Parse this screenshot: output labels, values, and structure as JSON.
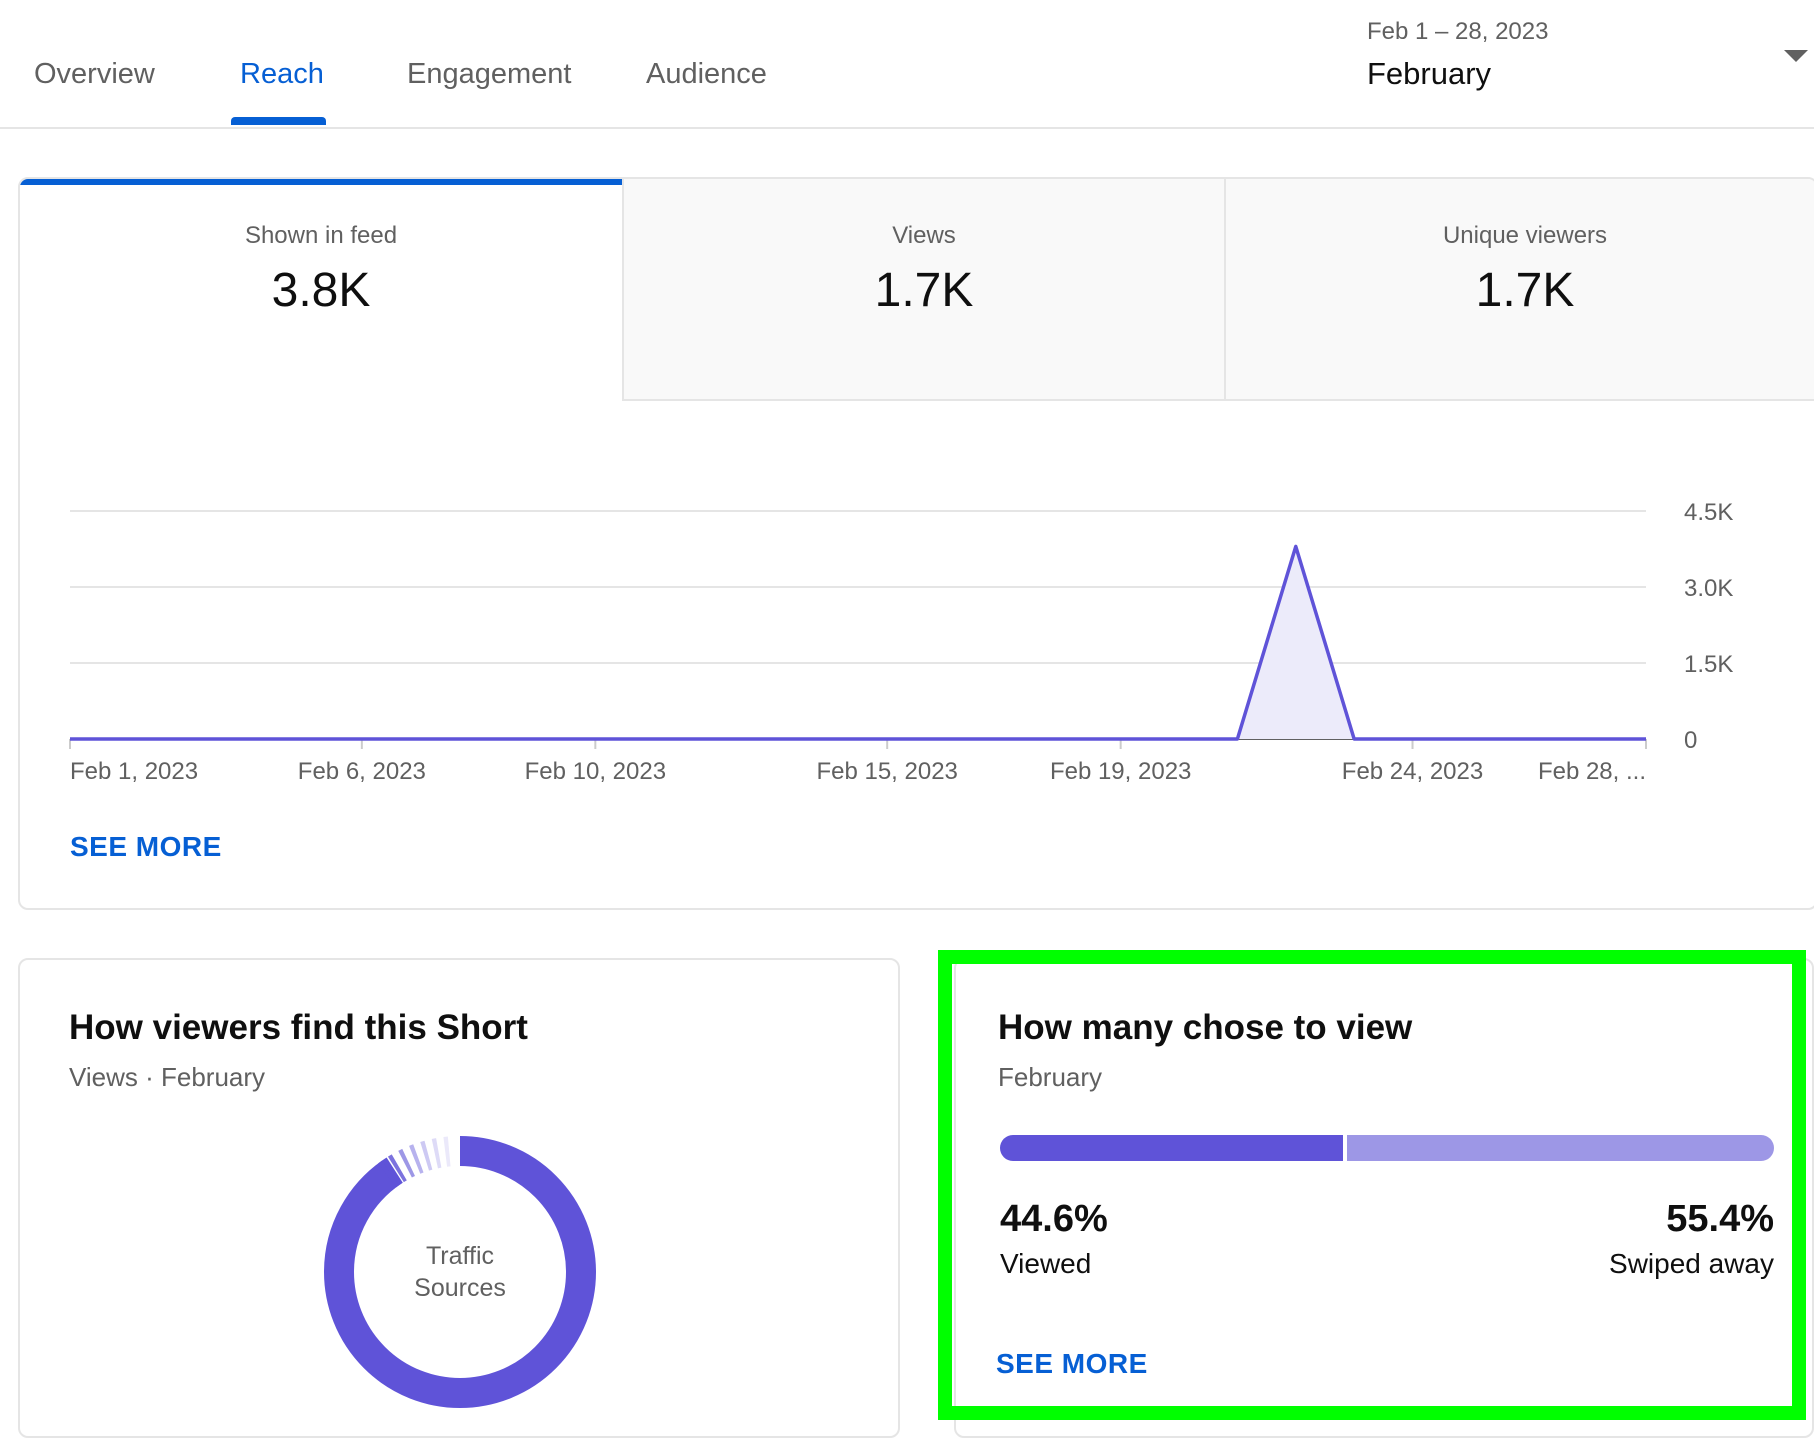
{
  "tabs": [
    {
      "label": "Overview"
    },
    {
      "label": "Reach"
    },
    {
      "label": "Engagement"
    },
    {
      "label": "Audience"
    }
  ],
  "active_tab": "Reach",
  "date_range": {
    "range": "Feb 1 – 28, 2023",
    "label": "February"
  },
  "metrics": [
    {
      "label": "Shown in feed",
      "value": "3.8K",
      "active": true
    },
    {
      "label": "Views",
      "value": "1.7K",
      "active": false
    },
    {
      "label": "Unique viewers",
      "value": "1.7K",
      "active": false
    }
  ],
  "chart_data": {
    "type": "area",
    "x": [
      "Feb 1, 2023",
      "Feb 2, 2023",
      "Feb 3, 2023",
      "Feb 4, 2023",
      "Feb 5, 2023",
      "Feb 6, 2023",
      "Feb 7, 2023",
      "Feb 8, 2023",
      "Feb 9, 2023",
      "Feb 10, 2023",
      "Feb 11, 2023",
      "Feb 12, 2023",
      "Feb 13, 2023",
      "Feb 14, 2023",
      "Feb 15, 2023",
      "Feb 16, 2023",
      "Feb 17, 2023",
      "Feb 18, 2023",
      "Feb 19, 2023",
      "Feb 20, 2023",
      "Feb 21, 2023",
      "Feb 22, 2023",
      "Feb 23, 2023",
      "Feb 24, 2023",
      "Feb 25, 2023",
      "Feb 26, 2023",
      "Feb 27, 2023",
      "Feb 28, 2023"
    ],
    "values": [
      0,
      0,
      0,
      0,
      0,
      0,
      0,
      0,
      0,
      0,
      0,
      0,
      0,
      0,
      0,
      0,
      0,
      0,
      0,
      0,
      0,
      3800,
      0,
      0,
      0,
      0,
      0,
      0
    ],
    "x_tick_labels": [
      "Feb 1, 2023",
      "Feb 6, 2023",
      "Feb 10, 2023",
      "Feb 15, 2023",
      "Feb 19, 2023",
      "Feb 24, 2023",
      "Feb 28, ..."
    ],
    "x_tick_dates": [
      "Feb 1, 2023",
      "Feb 6, 2023",
      "Feb 10, 2023",
      "Feb 15, 2023",
      "Feb 19, 2023",
      "Feb 24, 2023",
      "Feb 28, 2023"
    ],
    "y_ticks": [
      0,
      1500,
      3000,
      4500
    ],
    "y_tick_labels": [
      "0",
      "1.5K",
      "3.0K",
      "4.5K"
    ],
    "ylim": [
      0,
      4500
    ],
    "grid": true,
    "line_color": "#5f53d8",
    "fill_color": "#ecebfa"
  },
  "see_more_label": "SEE MORE",
  "traffic_card": {
    "title": "How viewers find this Short",
    "subtitle": "Views · February",
    "donut_center_line1": "Traffic",
    "donut_center_line2": "Sources"
  },
  "choice_card": {
    "title": "How many chose to view",
    "subtitle": "February",
    "viewed_percent": 44.6,
    "swiped_percent": 55.4,
    "viewed_pct_label": "44.6%",
    "viewed_label": "Viewed",
    "swiped_pct_label": "55.4%",
    "swiped_label": "Swiped away"
  },
  "colors": {
    "accent_blue": "#065fd4",
    "series_purple": "#5f53d8",
    "light_purple": "#9d97e6",
    "highlight_green": "#00ff00"
  }
}
